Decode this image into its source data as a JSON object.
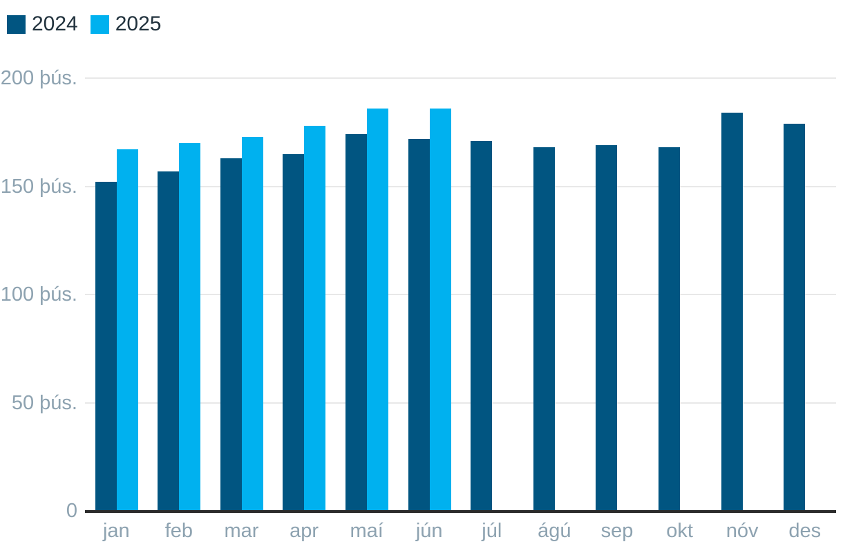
{
  "chart_data": {
    "type": "bar",
    "title": "",
    "xlabel": "",
    "ylabel": "",
    "unit": "þús.",
    "categories": [
      "jan",
      "feb",
      "mar",
      "apr",
      "maí",
      "jún",
      "júl",
      "ágú",
      "sep",
      "okt",
      "nóv",
      "des"
    ],
    "series": [
      {
        "name": "2024",
        "color": "#015581",
        "values": [
          152,
          157,
          163,
          165,
          174,
          172,
          171,
          168,
          169,
          168,
          184,
          179
        ]
      },
      {
        "name": "2025",
        "color": "#00b1ef",
        "values": [
          167,
          170,
          173,
          178,
          186,
          186,
          null,
          null,
          null,
          null,
          null,
          null
        ]
      }
    ],
    "ylim": [
      0,
      200
    ],
    "yticks": [
      {
        "value": 0,
        "label": "0"
      },
      {
        "value": 50,
        "label": "50 þús."
      },
      {
        "value": 100,
        "label": "100 þús."
      },
      {
        "value": 150,
        "label": "150 þús."
      },
      {
        "value": 200,
        "label": "200 þús."
      }
    ],
    "grid": true,
    "legend_position": "top-left"
  },
  "colors": {
    "background": "#ffffff",
    "gridline": "#e8e8e8",
    "axis_line": "#2b2b2b",
    "tick_label": "#8da2b0",
    "legend_text": "#21323d"
  }
}
